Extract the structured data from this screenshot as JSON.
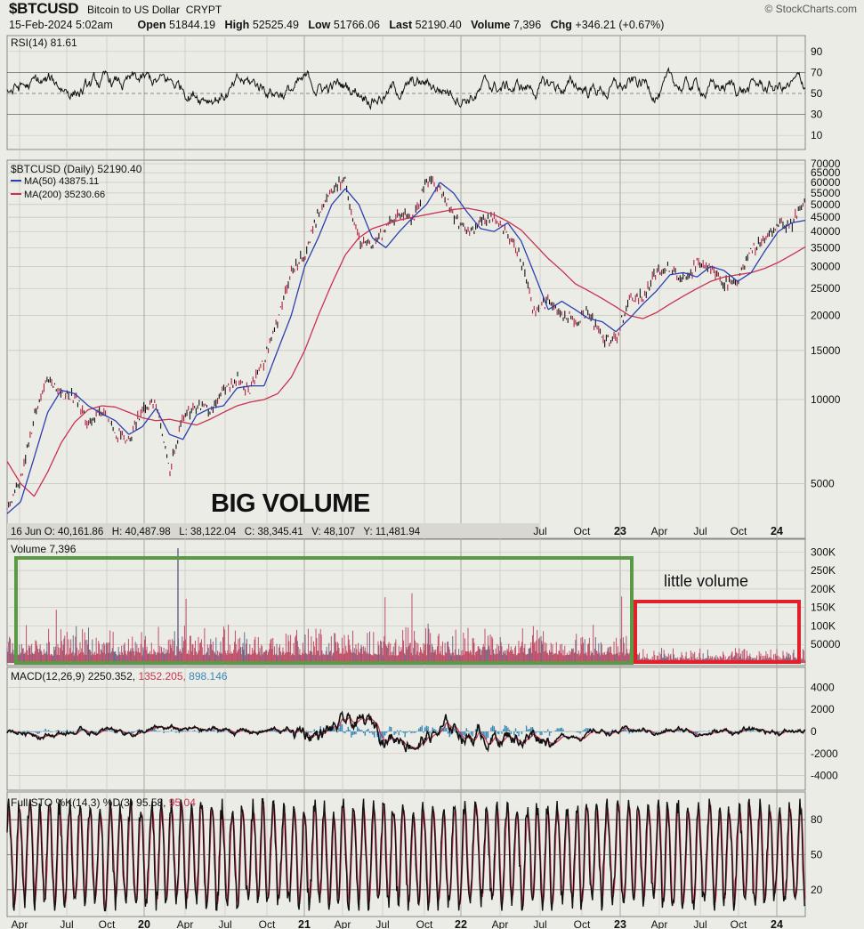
{
  "header": {
    "symbol": "$BTCUSD",
    "description": "Bitcoin to US Dollar",
    "exchange": "CRYPT",
    "brand": "© StockCharts.com",
    "date": "15-Feb-2024 5:02am",
    "open_label": "Open",
    "open": "51844.19",
    "high_label": "High",
    "high": "52525.49",
    "low_label": "Low",
    "low": "51766.06",
    "last_label": "Last",
    "last": "52190.40",
    "volume_label": "Volume",
    "volume": "7,396",
    "chg_label": "Chg",
    "chg": "+346.21 (+0.67%)"
  },
  "colors": {
    "price": "#111111",
    "ma50": "#2b3fb0",
    "ma200": "#c83250",
    "volume": "#c0506a",
    "volume_up": "#6a6a8a",
    "macd_hist": "#3a88b8",
    "green_box": "#5b9a44",
    "red_box": "#e0202a",
    "grid": "#c8c8c0"
  },
  "rsi": {
    "label": "RSI(14) 81.61",
    "ticks": [
      "90",
      "70",
      "50",
      "30",
      "10"
    ]
  },
  "price_panel": {
    "label": "$BTCUSD (Daily) 52190.40",
    "ma50_label": "MA(50) 43875.11",
    "ma200_label": "MA(200) 35230.66",
    "ticks": [
      "70000",
      "65000",
      "60000",
      "55000",
      "50000",
      "45000",
      "40000",
      "35000",
      "30000",
      "25000",
      "20000",
      "15000",
      "10000",
      "5000"
    ],
    "annotation": "BIG VOLUME",
    "hover_readout": "16 Jun O: 40,161.86   H: 40,487.98   L: 38,122.04   C: 38,345.41   V: 48,107   Y: 11,481.94",
    "month_labels": [
      "Jul",
      "Oct",
      "23",
      "Apr",
      "Jul",
      "Oct",
      "24"
    ]
  },
  "volume_panel": {
    "label": "Volume 7,396",
    "ticks": [
      "300K",
      "250K",
      "200K",
      "150K",
      "100K",
      "50000"
    ],
    "annotation": "little volume"
  },
  "macd": {
    "label_main": "MACD(12,26,9) 2250.352,",
    "label_signal": "1352.205,",
    "label_hist": "898.146",
    "ticks": [
      "4000",
      "2000",
      "0",
      "-2000",
      "-4000"
    ]
  },
  "sto": {
    "label_main": "Full STO %K(14,3) %D(3) 95.58,",
    "label_d": "95.04",
    "ticks": [
      "80",
      "50",
      "20"
    ]
  },
  "x_axis": {
    "labels": [
      "Apr",
      "Jul",
      "Oct",
      "20",
      "Apr",
      "Jul",
      "Oct",
      "21",
      "Apr",
      "Jul",
      "Oct",
      "22",
      "Apr",
      "Jul",
      "Oct",
      "23",
      "Apr",
      "Jul",
      "Oct",
      "24"
    ]
  },
  "chart_data": {
    "type": "line",
    "title": "$BTCUSD (Daily)",
    "x": [
      "2019-03",
      "2019-04",
      "2019-05",
      "2019-06",
      "2019-07",
      "2019-08",
      "2019-09",
      "2019-10",
      "2019-11",
      "2019-12",
      "2020-01",
      "2020-02",
      "2020-03",
      "2020-04",
      "2020-05",
      "2020-06",
      "2020-07",
      "2020-08",
      "2020-09",
      "2020-10",
      "2020-11",
      "2020-12",
      "2021-01",
      "2021-02",
      "2021-03",
      "2021-04",
      "2021-05",
      "2021-06",
      "2021-07",
      "2021-08",
      "2021-09",
      "2021-10",
      "2021-11",
      "2021-12",
      "2022-01",
      "2022-02",
      "2022-03",
      "2022-04",
      "2022-05",
      "2022-06",
      "2022-07",
      "2022-08",
      "2022-09",
      "2022-10",
      "2022-11",
      "2022-12",
      "2023-01",
      "2023-02",
      "2023-03",
      "2023-04",
      "2023-05",
      "2023-06",
      "2023-07",
      "2023-08",
      "2023-09",
      "2023-10",
      "2023-11",
      "2023-12",
      "2024-01",
      "2024-02"
    ],
    "series": [
      {
        "name": "$BTCUSD",
        "values": [
          4000,
          5200,
          8500,
          12000,
          10500,
          10200,
          8300,
          9200,
          7600,
          7200,
          9300,
          9800,
          5500,
          8700,
          9500,
          9200,
          10800,
          11700,
          10800,
          13700,
          19500,
          29000,
          33500,
          46000,
          57000,
          60000,
          37000,
          35000,
          41500,
          47000,
          43800,
          61300,
          57000,
          46200,
          38500,
          43200,
          45500,
          38500,
          31800,
          19800,
          23300,
          20000,
          19400,
          20500,
          16500,
          16600,
          23100,
          23200,
          28500,
          29300,
          27200,
          30500,
          29200,
          26000,
          27000,
          34500,
          37700,
          42300,
          42600,
          52190
        ]
      },
      {
        "name": "MA(50)",
        "values": [
          3900,
          4300,
          6200,
          9000,
          10800,
          10500,
          9500,
          8900,
          8400,
          7500,
          8000,
          9300,
          7500,
          7200,
          8800,
          9300,
          9500,
          11000,
          11200,
          11200,
          15000,
          20000,
          30000,
          38000,
          50000,
          57000,
          50000,
          38000,
          35000,
          40000,
          45000,
          50000,
          60000,
          55000,
          47000,
          41000,
          40000,
          43000,
          37000,
          28000,
          21000,
          22500,
          21000,
          19500,
          19000,
          17500,
          19500,
          22000,
          24500,
          28000,
          28500,
          27500,
          30000,
          29000,
          26500,
          28500,
          34000,
          40000,
          43000,
          43875
        ]
      },
      {
        "name": "MA(200)",
        "values": [
          6000,
          5000,
          4500,
          5500,
          7000,
          8300,
          9200,
          9500,
          9400,
          9000,
          8600,
          8400,
          8500,
          8300,
          8100,
          8500,
          9000,
          9500,
          9800,
          10000,
          10500,
          12000,
          15000,
          20000,
          26000,
          33000,
          38000,
          41000,
          42500,
          44000,
          45000,
          46000,
          47000,
          48000,
          48500,
          47500,
          46000,
          43500,
          40500,
          36000,
          32000,
          29000,
          26000,
          24500,
          23000,
          21500,
          20000,
          19500,
          20500,
          22000,
          23500,
          25000,
          26500,
          27500,
          28000,
          28500,
          29500,
          31000,
          33000,
          35230
        ]
      }
    ],
    "ylabel": "",
    "ylim": [
      3500,
      70000
    ],
    "log_scale": true,
    "grid": true
  }
}
